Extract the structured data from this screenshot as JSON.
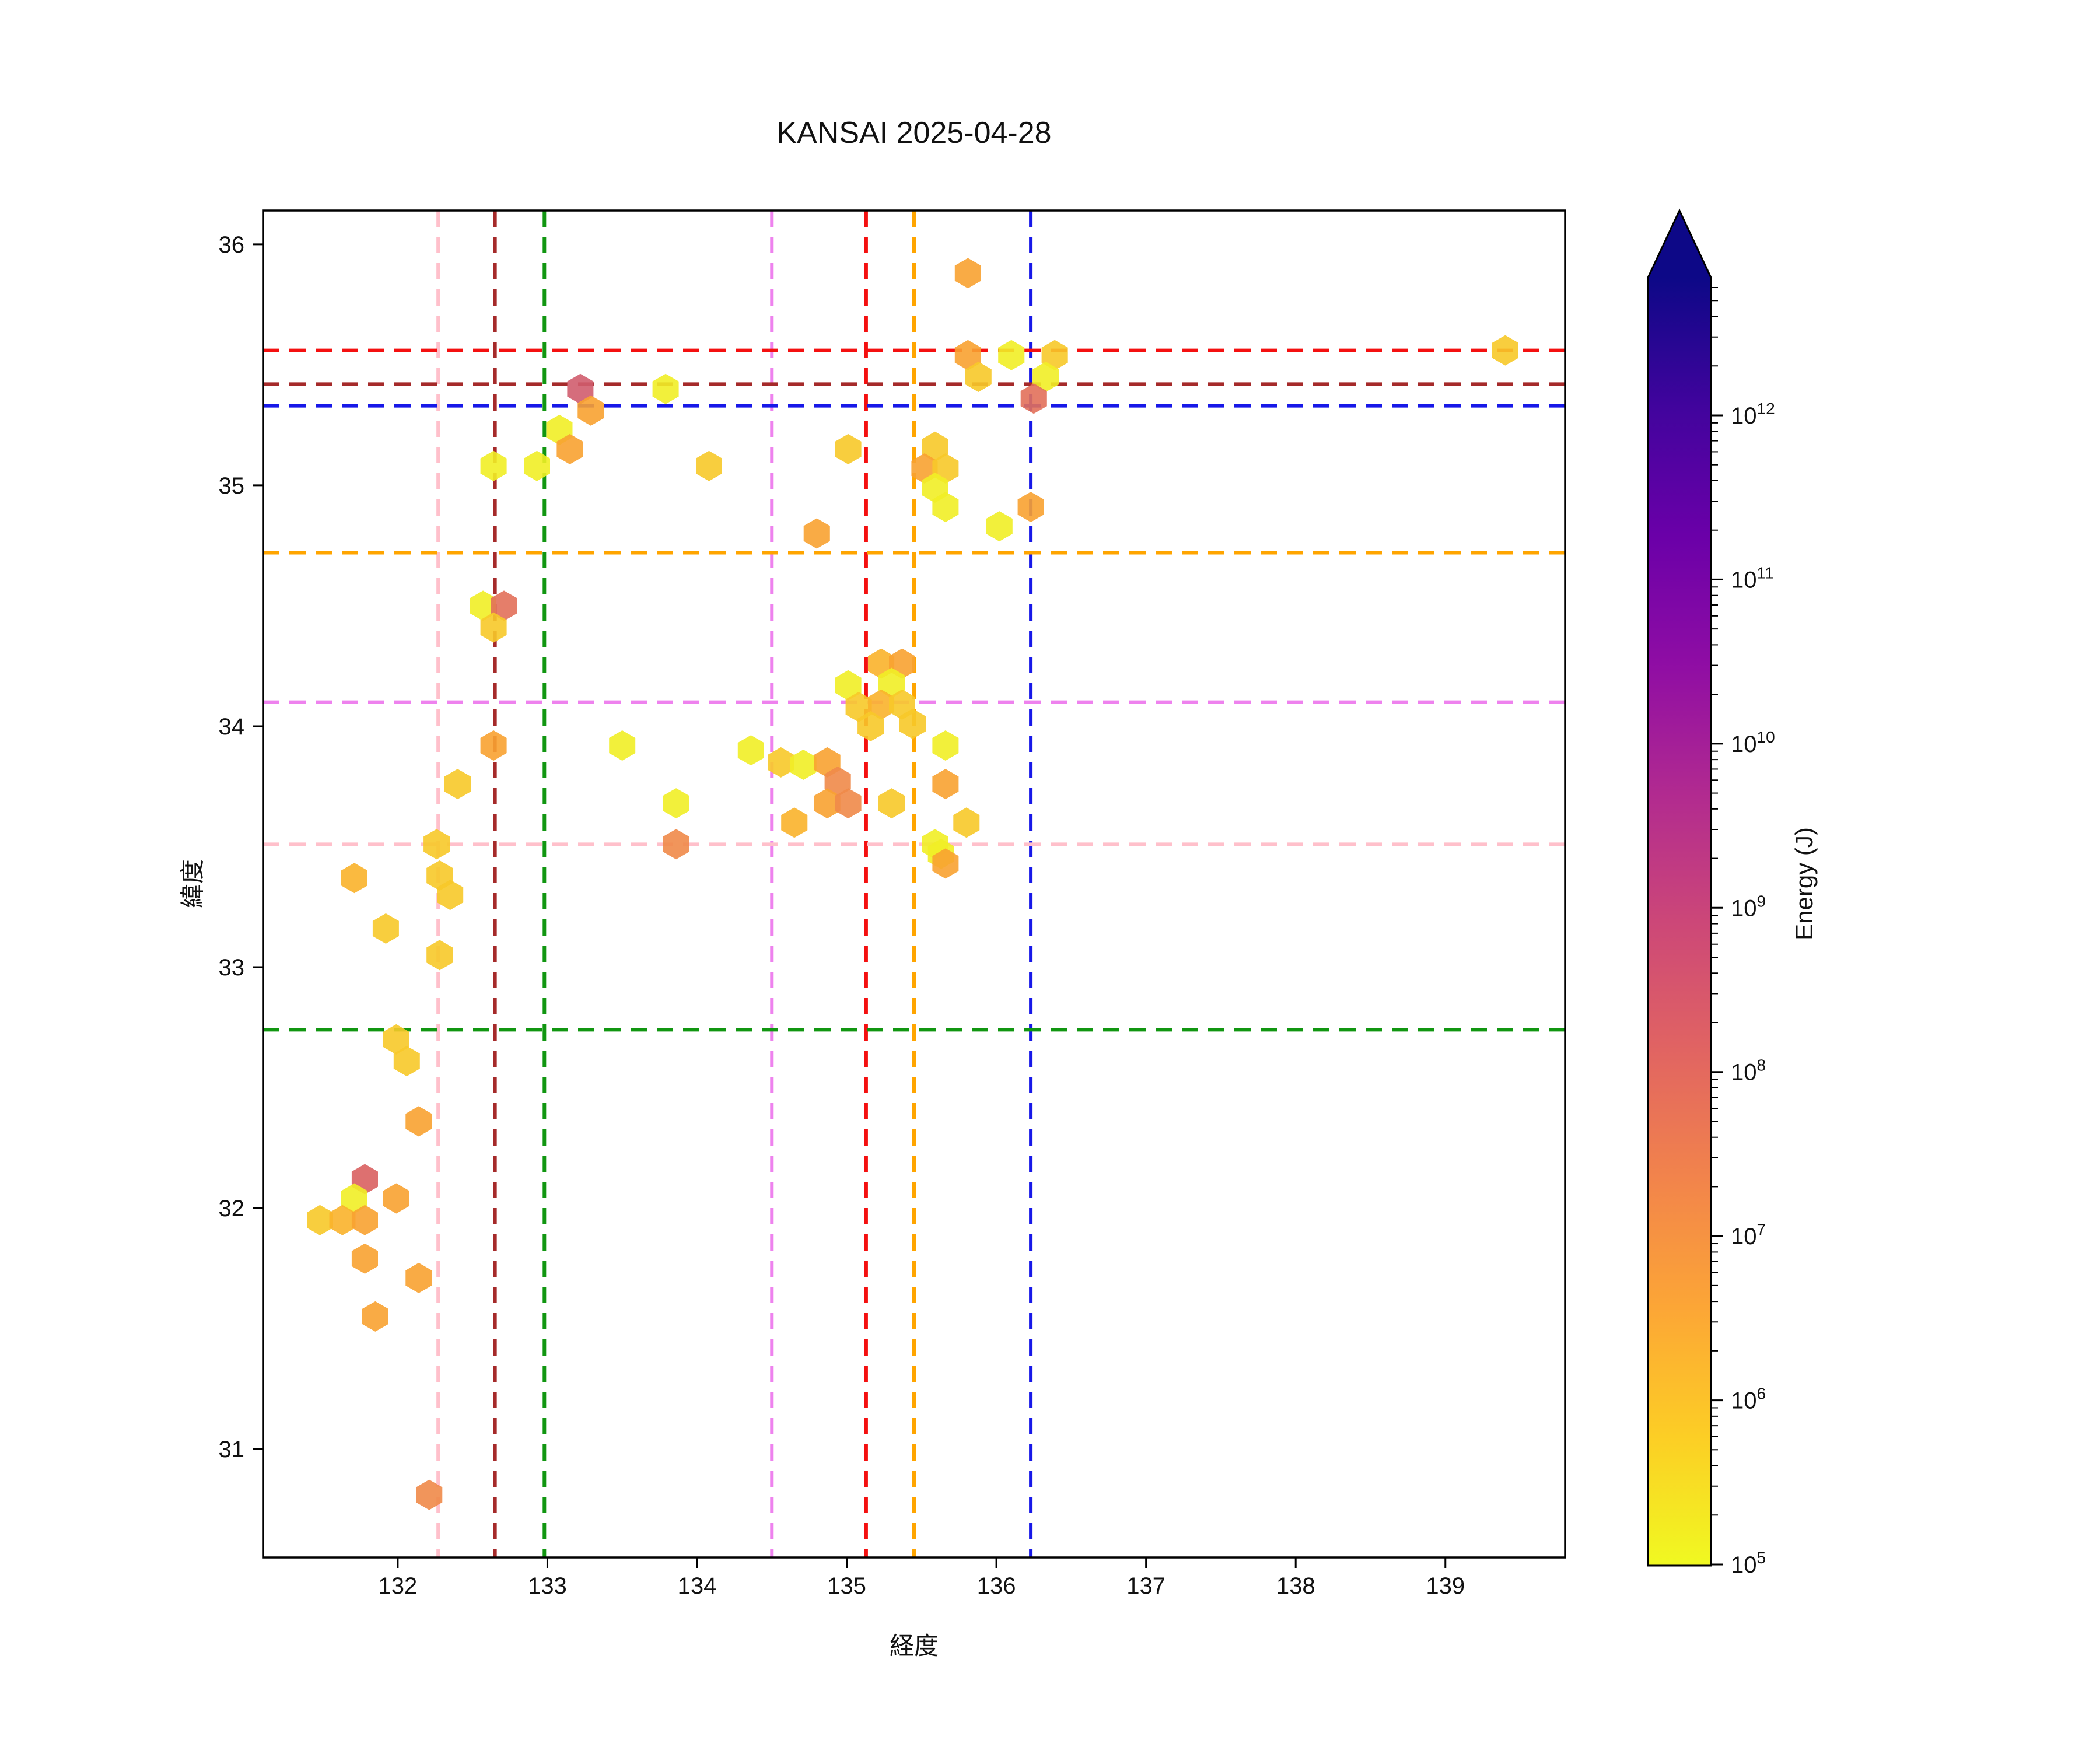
{
  "title": "KANSAI 2025-04-28",
  "chart_data": {
    "type": "scatter",
    "marker": "hexagon",
    "marker_radius_px": 26,
    "title": "KANSAI 2025-04-28",
    "xlabel": "経度",
    "ylabel": "緯度",
    "xlim": [
      131.1,
      139.8
    ],
    "ylim": [
      30.55,
      36.14
    ],
    "x_ticks": [
      132,
      133,
      134,
      135,
      136,
      137,
      138,
      139
    ],
    "y_ticks": [
      31,
      32,
      33,
      34,
      35,
      36
    ],
    "grid": false,
    "legend": "none",
    "colormap": "plasma_reversed",
    "colorbar": {
      "label": "Energy (J)",
      "scale": "log",
      "tick_exponents": [
        5,
        6,
        7,
        8,
        9,
        10,
        11,
        12
      ],
      "extend": "max",
      "gradient_top_to_bottom": [
        "#0d0887",
        "#41049d",
        "#6a00a8",
        "#8f0da4",
        "#b12a90",
        "#cc4778",
        "#e16462",
        "#f2844b",
        "#fca636",
        "#fcce25",
        "#f0f921"
      ]
    },
    "palette": {
      "yellow": {
        "hex": "#f1ee26",
        "energy_J_est": "2e5"
      },
      "gold": {
        "hex": "#f7c929",
        "energy_J_est": "6e5"
      },
      "amber": {
        "hex": "#fab32b",
        "energy_J_est": "2e6"
      },
      "orange": {
        "hex": "#f8a231",
        "energy_J_est": "6e6"
      },
      "deep-orange": {
        "hex": "#f08a49",
        "energy_J_est": "2e7"
      },
      "salmon": {
        "hex": "#e2705a",
        "energy_J_est": "8e7"
      },
      "crimson": {
        "hex": "#d96060",
        "energy_J_est": "1.3e8"
      },
      "magenta": {
        "hex": "#d05d6e",
        "energy_J_est": "3e8"
      }
    },
    "reference_lines": {
      "vertical": [
        {
          "color_name": "pink",
          "hex": "#FFC0CB",
          "lon": 132.27
        },
        {
          "color_name": "darkred",
          "hex": "#A52A2A",
          "lon": 132.65
        },
        {
          "color_name": "green",
          "hex": "#119611",
          "lon": 132.98
        },
        {
          "color_name": "violet",
          "hex": "#EE82EE",
          "lon": 134.5
        },
        {
          "color_name": "red",
          "hex": "#F41010",
          "lon": 135.13
        },
        {
          "color_name": "orange",
          "hex": "#FFA500",
          "lon": 135.45
        },
        {
          "color_name": "blue",
          "hex": "#1718E8",
          "lon": 136.23
        }
      ],
      "horizontal": [
        {
          "color_name": "red",
          "hex": "#F41010",
          "lat": 35.56
        },
        {
          "color_name": "darkred",
          "hex": "#A52A2A",
          "lat": 35.42
        },
        {
          "color_name": "blue",
          "hex": "#1718E8",
          "lat": 35.33
        },
        {
          "color_name": "orange",
          "hex": "#FFA500",
          "lat": 34.72
        },
        {
          "color_name": "violet",
          "hex": "#EE82EE",
          "lat": 34.1
        },
        {
          "color_name": "pink",
          "hex": "#FFC0CB",
          "lat": 33.51
        },
        {
          "color_name": "green",
          "hex": "#119611",
          "lat": 32.74
        }
      ]
    },
    "points": [
      {
        "lon": 135.81,
        "lat": 35.88,
        "level": "orange"
      },
      {
        "lon": 135.81,
        "lat": 35.54,
        "level": "orange"
      },
      {
        "lon": 135.88,
        "lat": 35.45,
        "level": "gold"
      },
      {
        "lon": 136.1,
        "lat": 35.54,
        "level": "yellow"
      },
      {
        "lon": 136.39,
        "lat": 35.54,
        "level": "gold"
      },
      {
        "lon": 136.33,
        "lat": 35.45,
        "level": "yellow"
      },
      {
        "lon": 136.25,
        "lat": 35.36,
        "level": "salmon"
      },
      {
        "lon": 139.4,
        "lat": 35.56,
        "level": "gold"
      },
      {
        "lon": 133.22,
        "lat": 35.4,
        "level": "magenta"
      },
      {
        "lon": 133.29,
        "lat": 35.31,
        "level": "orange"
      },
      {
        "lon": 133.79,
        "lat": 35.4,
        "level": "yellow"
      },
      {
        "lon": 133.08,
        "lat": 35.23,
        "level": "yellow"
      },
      {
        "lon": 133.15,
        "lat": 35.15,
        "level": "orange"
      },
      {
        "lon": 132.64,
        "lat": 35.08,
        "level": "yellow"
      },
      {
        "lon": 132.93,
        "lat": 35.08,
        "level": "yellow"
      },
      {
        "lon": 134.08,
        "lat": 35.08,
        "level": "gold"
      },
      {
        "lon": 135.01,
        "lat": 35.15,
        "level": "gold"
      },
      {
        "lon": 135.59,
        "lat": 35.16,
        "level": "gold"
      },
      {
        "lon": 135.52,
        "lat": 35.07,
        "level": "orange"
      },
      {
        "lon": 135.66,
        "lat": 35.07,
        "level": "gold"
      },
      {
        "lon": 135.59,
        "lat": 34.99,
        "level": "yellow"
      },
      {
        "lon": 135.66,
        "lat": 34.91,
        "level": "yellow"
      },
      {
        "lon": 136.02,
        "lat": 34.83,
        "level": "yellow"
      },
      {
        "lon": 136.23,
        "lat": 34.91,
        "level": "orange"
      },
      {
        "lon": 134.8,
        "lat": 34.8,
        "level": "orange"
      },
      {
        "lon": 135.23,
        "lat": 34.26,
        "level": "amber"
      },
      {
        "lon": 135.37,
        "lat": 34.26,
        "level": "orange"
      },
      {
        "lon": 135.01,
        "lat": 34.17,
        "level": "yellow"
      },
      {
        "lon": 135.3,
        "lat": 34.18,
        "level": "yellow"
      },
      {
        "lon": 135.08,
        "lat": 34.08,
        "level": "gold"
      },
      {
        "lon": 135.23,
        "lat": 34.09,
        "level": "amber"
      },
      {
        "lon": 135.37,
        "lat": 34.09,
        "level": "gold"
      },
      {
        "lon": 135.16,
        "lat": 34.0,
        "level": "gold"
      },
      {
        "lon": 135.44,
        "lat": 34.01,
        "level": "gold"
      },
      {
        "lon": 135.66,
        "lat": 33.92,
        "level": "yellow"
      },
      {
        "lon": 134.36,
        "lat": 33.9,
        "level": "yellow"
      },
      {
        "lon": 134.56,
        "lat": 33.85,
        "level": "gold"
      },
      {
        "lon": 134.71,
        "lat": 33.84,
        "level": "yellow"
      },
      {
        "lon": 134.87,
        "lat": 33.85,
        "level": "orange"
      },
      {
        "lon": 134.94,
        "lat": 33.77,
        "level": "deep-orange"
      },
      {
        "lon": 134.87,
        "lat": 33.68,
        "level": "orange"
      },
      {
        "lon": 135.01,
        "lat": 33.68,
        "level": "deep-orange"
      },
      {
        "lon": 135.3,
        "lat": 33.68,
        "level": "gold"
      },
      {
        "lon": 135.66,
        "lat": 33.76,
        "level": "orange"
      },
      {
        "lon": 134.65,
        "lat": 33.6,
        "level": "amber"
      },
      {
        "lon": 135.8,
        "lat": 33.6,
        "level": "gold"
      },
      {
        "lon": 135.59,
        "lat": 33.51,
        "level": "yellow"
      },
      {
        "lon": 135.63,
        "lat": 33.47,
        "level": "yellow"
      },
      {
        "lon": 135.66,
        "lat": 33.43,
        "level": "orange"
      },
      {
        "lon": 133.5,
        "lat": 33.92,
        "level": "yellow"
      },
      {
        "lon": 133.86,
        "lat": 33.68,
        "level": "yellow"
      },
      {
        "lon": 133.86,
        "lat": 33.51,
        "level": "deep-orange"
      },
      {
        "lon": 132.57,
        "lat": 34.5,
        "level": "yellow"
      },
      {
        "lon": 132.71,
        "lat": 34.5,
        "level": "salmon"
      },
      {
        "lon": 132.64,
        "lat": 34.41,
        "level": "gold"
      },
      {
        "lon": 132.64,
        "lat": 33.92,
        "level": "orange"
      },
      {
        "lon": 132.4,
        "lat": 33.76,
        "level": "gold"
      },
      {
        "lon": 132.26,
        "lat": 33.51,
        "level": "gold"
      },
      {
        "lon": 132.28,
        "lat": 33.38,
        "level": "gold"
      },
      {
        "lon": 132.35,
        "lat": 33.3,
        "level": "gold"
      },
      {
        "lon": 131.71,
        "lat": 33.37,
        "level": "amber"
      },
      {
        "lon": 131.92,
        "lat": 33.16,
        "level": "gold"
      },
      {
        "lon": 132.28,
        "lat": 33.05,
        "level": "gold"
      },
      {
        "lon": 131.99,
        "lat": 32.7,
        "level": "gold"
      },
      {
        "lon": 132.06,
        "lat": 32.61,
        "level": "gold"
      },
      {
        "lon": 132.14,
        "lat": 32.36,
        "level": "orange"
      },
      {
        "lon": 131.78,
        "lat": 32.12,
        "level": "crimson"
      },
      {
        "lon": 131.71,
        "lat": 32.04,
        "level": "yellow"
      },
      {
        "lon": 131.99,
        "lat": 32.04,
        "level": "orange"
      },
      {
        "lon": 131.48,
        "lat": 31.95,
        "level": "gold"
      },
      {
        "lon": 131.63,
        "lat": 31.95,
        "level": "amber"
      },
      {
        "lon": 131.78,
        "lat": 31.95,
        "level": "orange"
      },
      {
        "lon": 131.78,
        "lat": 31.79,
        "level": "orange"
      },
      {
        "lon": 132.14,
        "lat": 31.71,
        "level": "orange"
      },
      {
        "lon": 131.85,
        "lat": 31.55,
        "level": "orange"
      },
      {
        "lon": 132.21,
        "lat": 30.81,
        "level": "deep-orange"
      }
    ]
  }
}
